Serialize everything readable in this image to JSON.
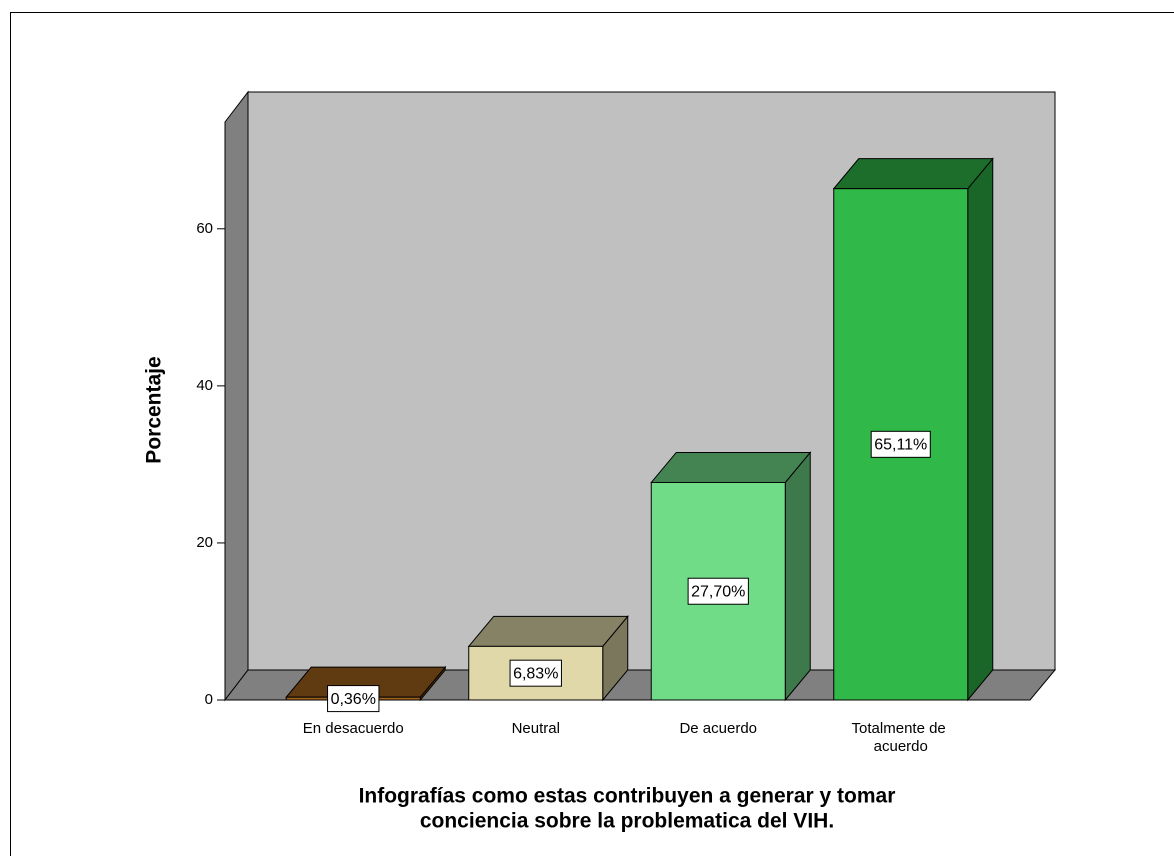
{
  "chart_data": {
    "type": "bar3d",
    "ylabel": "Porcentaje",
    "xlabel": [
      "Infografías como estas contribuyen a generar y tomar",
      "conciencia sobre la problematica del VIH."
    ],
    "categories": [
      "En desacuerdo",
      "Neutral",
      "De acuerdo",
      "Totalmente de acuerdo"
    ],
    "values": [
      0.36,
      6.83,
      27.7,
      65.11
    ],
    "value_labels": [
      "0,36%",
      "6,83%",
      "27,70%",
      "65,11%"
    ],
    "colors": [
      "#a0621c",
      "#e0d8a8",
      "#70dc88",
      "#30b848"
    ],
    "ylim": [
      0,
      73.6
    ],
    "yticks": [
      0,
      20,
      40,
      60
    ]
  }
}
